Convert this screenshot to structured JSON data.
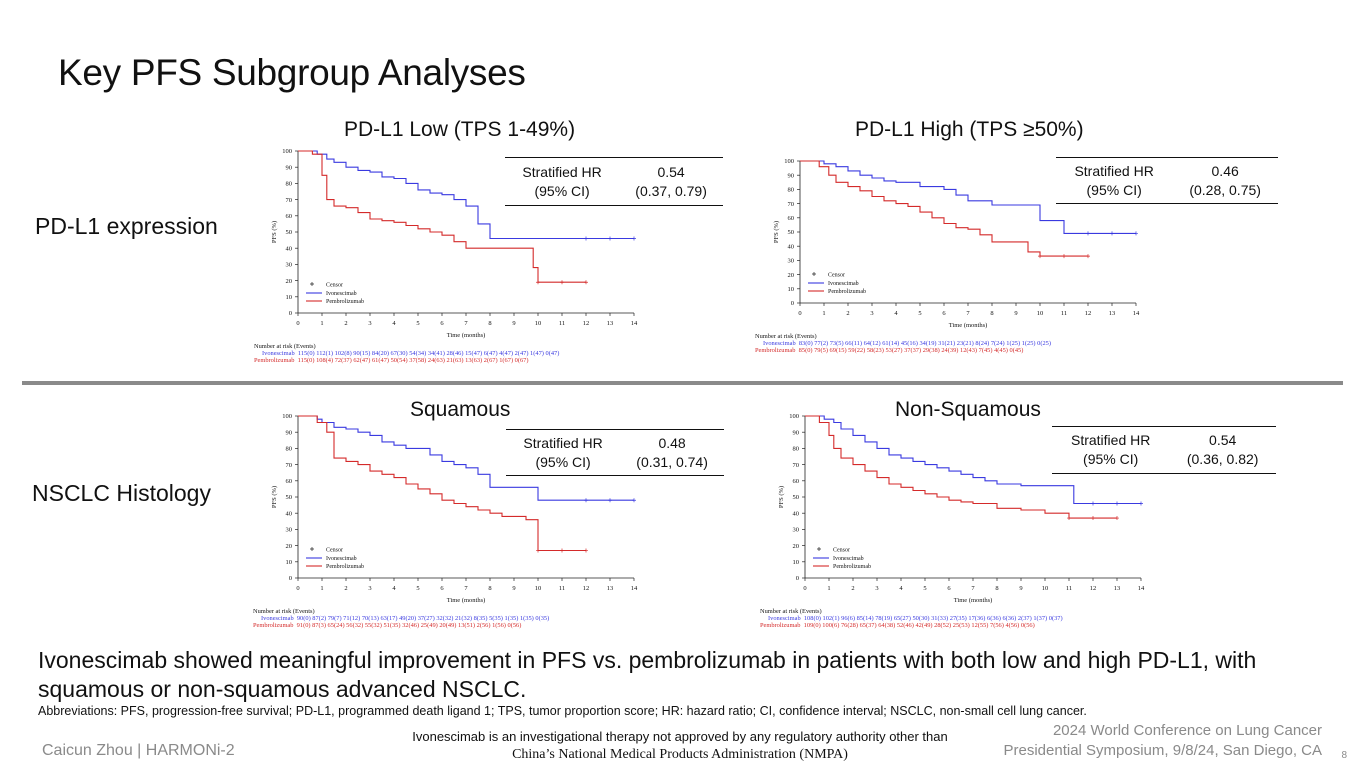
{
  "slide": {
    "title": "Key PFS Subgroup Analyses",
    "row_labels": [
      "PD-L1 expression",
      "NSCLC Histology"
    ],
    "conclusion": "Ivonescimab showed meaningful improvement in PFS vs. pembrolizumab in patients with both low and high PD-L1, with squamous or non-squamous advanced NSCLC.",
    "abbreviations": "Abbreviations: PFS, progression-free survival; PD-L1, programmed death ligand 1; TPS, tumor proportion score; HR: hazard ratio; CI, confidence interval; NSCLC, non-small cell lung cancer.",
    "presenter": "Caicun Zhou | HARMONi-2",
    "disclaimer_line1": "Ivonescimab is an investigational therapy not approved by any regulatory authority other than",
    "disclaimer_line2": "China’s National Medical Products Administration (NMPA)",
    "conference_line1": "2024 World Conference on Lung Cancer",
    "conference_line2": "Presidential Symposium, 9/8/24, San Diego, CA",
    "page_number": "8",
    "colors": {
      "ivonescimab": "#3a3ae0",
      "pembrolizumab": "#d42a2a",
      "divider": "#8a8a8a"
    }
  },
  "chart_data": [
    {
      "type": "line",
      "title": "PD-L1 Low (TPS 1-49%)",
      "xlabel": "Time (months)",
      "ylabel": "PFS (%)",
      "xlim": [
        0,
        14
      ],
      "ylim": [
        0,
        100
      ],
      "xticks": [
        "0",
        "1",
        "2",
        "3",
        "4",
        "5",
        "6",
        "7",
        "8",
        "9",
        "10",
        "11",
        "12",
        "13",
        "14"
      ],
      "yticks": [
        "0",
        "10",
        "20",
        "30",
        "40",
        "50",
        "60",
        "70",
        "80",
        "90",
        "100"
      ],
      "legend": [
        "Censor",
        "Ivonescimab",
        "Pembrolizumab"
      ],
      "hr_label": "Stratified HR",
      "ci_label": "(95% CI)",
      "hr_value": "0.54",
      "ci_value": "(0.37, 0.79)",
      "series": [
        {
          "name": "Ivonescimab",
          "color": "#3a3ae0",
          "x": [
            0,
            0.8,
            1.2,
            1.5,
            2,
            2.5,
            3,
            3.5,
            4,
            4.5,
            5,
            5.5,
            6,
            6.5,
            7,
            7.5,
            8,
            9,
            10,
            11,
            12,
            13,
            14
          ],
          "y": [
            100,
            98,
            95,
            93,
            90,
            88,
            87,
            84,
            83,
            80,
            76,
            74,
            73,
            70,
            66,
            55,
            46,
            46,
            46,
            46,
            46,
            46,
            46
          ]
        },
        {
          "name": "Pembrolizumab",
          "color": "#d42a2a",
          "x": [
            0,
            0.6,
            1,
            1.2,
            1.5,
            2,
            2.5,
            3,
            3.5,
            4,
            4.5,
            5,
            5.5,
            6,
            6.5,
            7,
            8,
            9,
            9.8,
            10,
            11,
            12
          ],
          "y": [
            100,
            98,
            85,
            70,
            66,
            65,
            62,
            58,
            57,
            56,
            54,
            52,
            50,
            48,
            44,
            40,
            40,
            40,
            28,
            19,
            19,
            19
          ]
        }
      ],
      "risk_header": "Number at risk (Events)",
      "risk_rows": [
        {
          "name": "Ivonescimab",
          "values": "115(0) 112(1) 102(8) 90(15) 84(20) 67(30) 54(34) 34(41) 28(46) 15(47) 6(47) 4(47) 2(47) 1(47) 0(47)"
        },
        {
          "name": "Pembrolizumab",
          "values": "115(0) 108(4) 72(37) 62(47) 61(47) 50(54) 37(58) 24(63) 21(63) 13(63) 2(67) 1(67) 0(67)"
        }
      ]
    },
    {
      "type": "line",
      "title": "PD-L1 High (TPS ≥50%)",
      "xlabel": "Time (months)",
      "ylabel": "PFS (%)",
      "xlim": [
        0,
        14
      ],
      "ylim": [
        0,
        100
      ],
      "xticks": [
        "0",
        "1",
        "2",
        "3",
        "4",
        "5",
        "6",
        "7",
        "8",
        "9",
        "10",
        "11",
        "12",
        "13",
        "14"
      ],
      "yticks": [
        "0",
        "10",
        "20",
        "30",
        "40",
        "50",
        "60",
        "70",
        "80",
        "90",
        "100"
      ],
      "legend": [
        "Censor",
        "Ivonescimab",
        "Pembrolizumab"
      ],
      "hr_label": "Stratified HR",
      "ci_label": "(95% CI)",
      "hr_value": "0.46",
      "ci_value": "(0.28, 0.75)",
      "series": [
        {
          "name": "Ivonescimab",
          "color": "#3a3ae0",
          "x": [
            0,
            1,
            1.5,
            2,
            2.5,
            3,
            3.5,
            4,
            5,
            6,
            6.5,
            7,
            8,
            9,
            10,
            10.5,
            11,
            11.5,
            12,
            13,
            14
          ],
          "y": [
            100,
            98,
            96,
            93,
            90,
            88,
            86,
            85,
            82,
            80,
            76,
            72,
            69,
            69,
            58,
            58,
            49,
            49,
            49,
            49,
            49
          ]
        },
        {
          "name": "Pembrolizumab",
          "color": "#d42a2a",
          "x": [
            0,
            0.8,
            1.2,
            1.5,
            2,
            2.5,
            3,
            3.5,
            4,
            4.5,
            5,
            5.5,
            6,
            6.5,
            7,
            7.5,
            8,
            9,
            9.5,
            10,
            11,
            12
          ],
          "y": [
            100,
            96,
            90,
            85,
            82,
            79,
            75,
            72,
            70,
            68,
            64,
            60,
            56,
            53,
            52,
            48,
            43,
            43,
            36,
            33,
            33,
            33
          ]
        }
      ],
      "risk_header": "Number at risk (Events)",
      "risk_rows": [
        {
          "name": "Ivonescimab",
          "values": "83(0) 77(2) 73(5) 66(11) 64(12) 61(14) 45(16) 34(19) 31(21) 23(21) 8(24) 7(24) 1(25) 1(25) 0(25)"
        },
        {
          "name": "Pembrolizumab",
          "values": "85(0) 79(5) 69(15) 59(22) 58(23) 53(27) 37(37) 29(38) 24(39) 12(43) 7(45) 4(45) 0(45)"
        }
      ]
    },
    {
      "type": "line",
      "title": "Squamous",
      "xlabel": "Time (months)",
      "ylabel": "PFS (%)",
      "xlim": [
        0,
        14
      ],
      "ylim": [
        0,
        100
      ],
      "xticks": [
        "0",
        "1",
        "2",
        "3",
        "4",
        "5",
        "6",
        "7",
        "8",
        "9",
        "10",
        "11",
        "12",
        "13",
        "14"
      ],
      "yticks": [
        "0",
        "10",
        "20",
        "30",
        "40",
        "50",
        "60",
        "70",
        "80",
        "90",
        "100"
      ],
      "legend": [
        "Censor",
        "Ivonescimab",
        "Pembrolizumab"
      ],
      "hr_label": "Stratified HR",
      "ci_label": "(95% CI)",
      "hr_value": "0.48",
      "ci_value": "(0.31, 0.74)",
      "series": [
        {
          "name": "Ivonescimab",
          "color": "#3a3ae0",
          "x": [
            0,
            0.8,
            1,
            1.5,
            2,
            2.5,
            3,
            3.5,
            4,
            4.5,
            5,
            5.5,
            6,
            6.5,
            7,
            7.5,
            8,
            9,
            10,
            11,
            12,
            13,
            14
          ],
          "y": [
            100,
            98,
            96,
            93,
            92,
            90,
            88,
            84,
            82,
            80,
            80,
            76,
            72,
            70,
            68,
            64,
            56,
            56,
            48,
            48,
            48,
            48,
            48
          ]
        },
        {
          "name": "Pembrolizumab",
          "color": "#d42a2a",
          "x": [
            0,
            0.8,
            1.2,
            1.5,
            2,
            2.5,
            3,
            3.5,
            4,
            4.5,
            5,
            5.5,
            6,
            6.5,
            7,
            7.5,
            8,
            8.5,
            9,
            9.5,
            10,
            11,
            12
          ],
          "y": [
            100,
            96,
            90,
            74,
            72,
            70,
            66,
            64,
            62,
            58,
            55,
            52,
            48,
            46,
            44,
            42,
            40,
            38,
            38,
            36,
            17,
            17,
            17
          ]
        }
      ],
      "risk_header": "Number at risk (Events)",
      "risk_rows": [
        {
          "name": "Ivonescimab",
          "values": "90(0) 87(2) 79(7) 71(12) 70(13) 63(17) 49(20) 37(27) 32(32) 21(32) 8(35) 5(35) 1(35) 1(35) 0(35)"
        },
        {
          "name": "Pembrolizumab",
          "values": "91(0) 87(3) 65(24) 56(32) 55(32) 51(35) 32(46) 25(49) 20(49) 13(51) 2(56) 1(56) 0(56)"
        }
      ]
    },
    {
      "type": "line",
      "title": "Non-Squamous",
      "xlabel": "Time (months)",
      "ylabel": "PFS (%)",
      "xlim": [
        0,
        14
      ],
      "ylim": [
        0,
        100
      ],
      "xticks": [
        "0",
        "1",
        "2",
        "3",
        "4",
        "5",
        "6",
        "7",
        "8",
        "9",
        "10",
        "11",
        "12",
        "13",
        "14"
      ],
      "yticks": [
        "0",
        "10",
        "20",
        "30",
        "40",
        "50",
        "60",
        "70",
        "80",
        "90",
        "100"
      ],
      "legend": [
        "Censor",
        "Ivonescimab",
        "Pembrolizumab"
      ],
      "hr_label": "Stratified HR",
      "ci_label": "(95% CI)",
      "hr_value": "0.54",
      "ci_value": "(0.36, 0.82)",
      "series": [
        {
          "name": "Ivonescimab",
          "color": "#3a3ae0",
          "x": [
            0,
            0.8,
            1.2,
            1.5,
            2,
            2.5,
            3,
            3.5,
            4,
            4.5,
            5,
            5.5,
            6,
            6.5,
            7,
            7.5,
            8,
            9,
            10,
            11,
            11.2,
            12,
            13,
            14
          ],
          "y": [
            100,
            98,
            96,
            92,
            88,
            84,
            80,
            76,
            74,
            72,
            70,
            68,
            66,
            64,
            62,
            60,
            58,
            57,
            57,
            57,
            46,
            46,
            46,
            46
          ]
        },
        {
          "name": "Pembrolizumab",
          "color": "#d42a2a",
          "x": [
            0,
            0.6,
            1,
            1.2,
            1.5,
            2,
            2.5,
            3,
            3.5,
            4,
            4.5,
            5,
            5.5,
            6,
            6.5,
            7,
            8,
            9,
            10,
            11,
            12,
            13
          ],
          "y": [
            100,
            96,
            88,
            80,
            74,
            70,
            66,
            62,
            58,
            56,
            54,
            52,
            50,
            48,
            47,
            46,
            43,
            42,
            40,
            37,
            37,
            37
          ]
        }
      ],
      "risk_header": "Number at risk (Events)",
      "risk_rows": [
        {
          "name": "Ivonescimab",
          "values": "108(0) 102(1) 96(6) 85(14) 78(19) 65(27) 50(30) 31(33) 27(35) 17(36) 6(36) 6(36) 2(37) 1(37) 0(37)"
        },
        {
          "name": "Pembrolizumab",
          "values": "109(0) 100(6) 76(28) 65(37) 64(38) 52(46) 42(49) 28(52) 25(53) 12(55) 7(56) 4(56) 0(56)"
        }
      ]
    }
  ]
}
